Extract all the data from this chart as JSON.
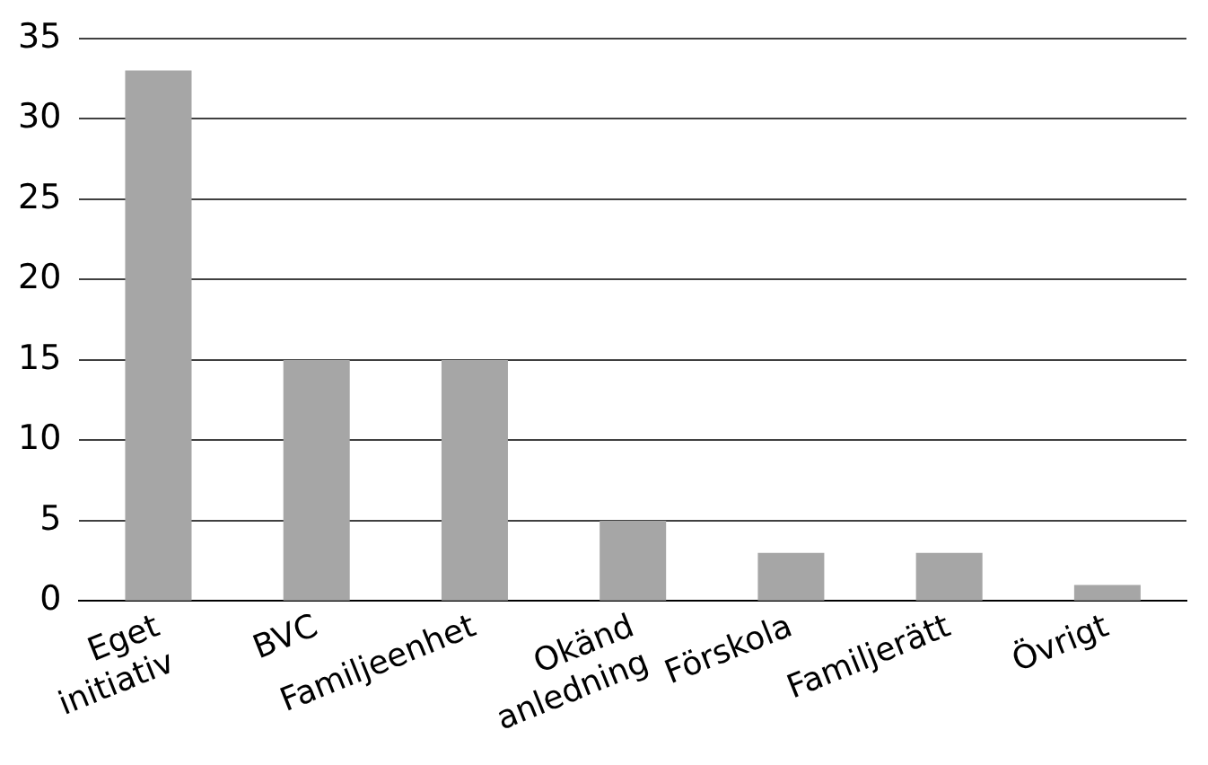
{
  "chart_data": {
    "type": "bar",
    "categories": [
      "Eget initiativ",
      "BVC",
      "Familjeenhet",
      "Okänd anledning",
      "Förskola",
      "Familjerätt",
      "Övrigt"
    ],
    "values": [
      33,
      15,
      15,
      5,
      3,
      3,
      1
    ],
    "color": "#a6a6a6",
    "ylim": [
      0,
      35
    ],
    "yticks": [
      0,
      5,
      10,
      15,
      20,
      25,
      30,
      35
    ],
    "grid": "y",
    "legend": false
  }
}
